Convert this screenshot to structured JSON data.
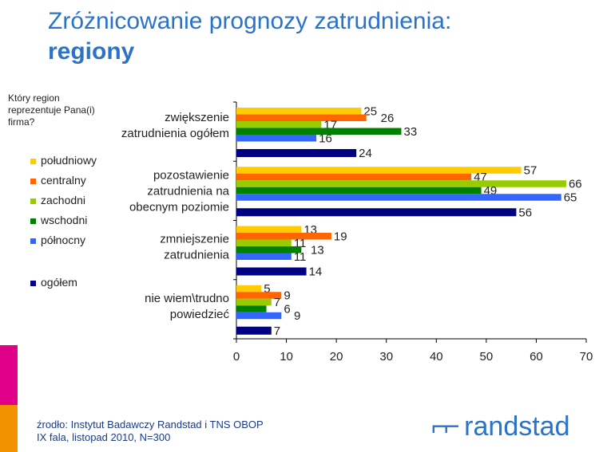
{
  "title_line1": "Zróżnicowanie prognozy zatrudnienia:",
  "title_line2": "regiony",
  "question": "Który region reprezentuje Pana(i) firma?",
  "source_line1": "źrodło: Instytut Badawczy Randstad i TNS OBOP",
  "source_line2": "IX fala, listopad 2010, N=300",
  "logo": "randstad",
  "chart_data": {
    "type": "bar",
    "orientation": "horizontal",
    "categories": [
      [
        "zwiększenie",
        "zatrudnienia ogółem"
      ],
      [
        "pozostawienie",
        "zatrudnienia na",
        "obecnym poziomie"
      ],
      [
        "zmniejszenie",
        "zatrudnienia"
      ],
      [
        "nie wiem\\trudno",
        "powiedzieć"
      ]
    ],
    "series": [
      {
        "name": "południowy",
        "color": "#FFCC00",
        "values": [
          25,
          57,
          13,
          5
        ]
      },
      {
        "name": "centralny",
        "color": "#FF6600",
        "values": [
          26,
          47,
          19,
          9
        ]
      },
      {
        "name": "zachodni",
        "color": "#99CC00",
        "values": [
          17,
          66,
          11,
          7
        ]
      },
      {
        "name": "wschodni",
        "color": "#008000",
        "values": [
          33,
          49,
          13,
          6
        ]
      },
      {
        "name": "północny",
        "color": "#3366FF",
        "values": [
          16,
          65,
          11,
          9
        ]
      },
      {
        "name": "ogółem",
        "color": "#000080",
        "values": [
          24,
          56,
          14,
          7
        ]
      }
    ],
    "xlim": [
      0,
      70
    ],
    "xticks": [
      0,
      10,
      20,
      30,
      40,
      50,
      60,
      70
    ],
    "legend": "left",
    "grid": false
  }
}
